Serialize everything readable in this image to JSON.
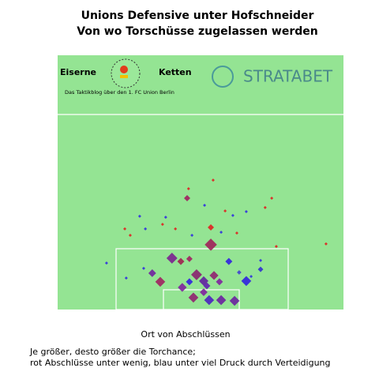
{
  "chart_data": {
    "type": "scatter",
    "title": [
      "Unions Defensive unter Hofschneider",
      "Von wo Torschüsse zugelassen werden"
    ],
    "xlabel": "Ort von Abschlüssen",
    "caption": [
      "Je größer, desto größer die Torchance;",
      "rot Abschlüsse unter wenig, blau unter viel Druck durch Verteidigung"
    ],
    "logo": {
      "left": "Eiserne",
      "right": "Ketten",
      "tagline": "Das Taktikblog über den 1. FC Union Berlin",
      "sponsor": "STRATABET"
    },
    "xlim": [
      0,
      100
    ],
    "ylim": [
      0,
      100
    ],
    "x": [
      53.6,
      40.0,
      48.6,
      35.9,
      47.5,
      57.2,
      61.9,
      53.0,
      66.0,
      51.1,
      43.6,
      54.7,
      59.9,
      46.1,
      33.1,
      43.1,
      46.1,
      53.6,
      45.3,
      51.1,
      56.6,
      52.2,
      71.0,
      63.5,
      45.8,
      54.4,
      37.8,
      28.7,
      23.5,
      25.4,
      30.7,
      51.4,
      58.6,
      61.3,
      66.0,
      72.6,
      74.9,
      36.7,
      41.2,
      57.2,
      62.7,
      47.0,
      17.1,
      24.0,
      30.1,
      76.5,
      93.9,
      71.0,
      67.7
    ],
    "values": [
      25.5,
      20.2,
      13.7,
      10.9,
      4.7,
      3.7,
      3.4,
      3.7,
      11.2,
      11.2,
      8.7,
      13.4,
      18.9,
      10.9,
      14.3,
      18.9,
      19.9,
      32.3,
      43.8,
      6.8,
      10.9,
      9.3,
      15.8,
      14.6,
      47.5,
      50.9,
      36.3,
      36.7,
      31.7,
      29.2,
      31.7,
      41.0,
      38.8,
      37.0,
      38.5,
      40.1,
      43.8,
      33.5,
      31.7,
      30.4,
      30.1,
      29.2,
      18.3,
      12.4,
      16.2,
      24.8,
      25.8,
      19.3,
      13.0
    ],
    "sizes": [
      0.15,
      0.12,
      0.12,
      0.1,
      0.1,
      0.1,
      0.1,
      0.1,
      0.1,
      0.09,
      0.08,
      0.08,
      0.05,
      0.05,
      0.06,
      0.05,
      0.04,
      0.04,
      0.04,
      0.06,
      0.05,
      0.05,
      0.03,
      0.02,
      0.01,
      0.01,
      0.01,
      0.01,
      0.01,
      0.01,
      0.01,
      0.01,
      0.01,
      0.01,
      0.01,
      0.01,
      0.01,
      0.01,
      0.01,
      0.01,
      0.01,
      0.01,
      0.01,
      0.01,
      0.01,
      0.01,
      0.01,
      0.01,
      0.01
    ],
    "colors": [
      "#a0205a",
      "#7a2090",
      "#8a2070",
      "#a02060",
      "#902070",
      "#6a20a0",
      "#6a20a0",
      "#4a20c0",
      "#3020e0",
      "#6020a0",
      "#8020a0",
      "#902070",
      "#3020e0",
      "#3020e0",
      "#7020a0",
      "#a02050",
      "#a02060",
      "#e02020",
      "#a02060",
      "#8020a0",
      "#8020a0",
      "#6020b0",
      "#3030d0",
      "#4040d0",
      "#e02020",
      "#e02020",
      "#3030e0",
      "#3030e0",
      "#e02020",
      "#e02020",
      "#3030e0",
      "#3030e0",
      "#e02020",
      "#3030e0",
      "#3030e0",
      "#e02020",
      "#e02020",
      "#e02020",
      "#e02020",
      "#3030e0",
      "#e02020",
      "#3030e0",
      "#3030e0",
      "#3030e0",
      "#3030e0",
      "#e02020",
      "#e02020",
      "#3030e0",
      "#3030e0"
    ]
  }
}
